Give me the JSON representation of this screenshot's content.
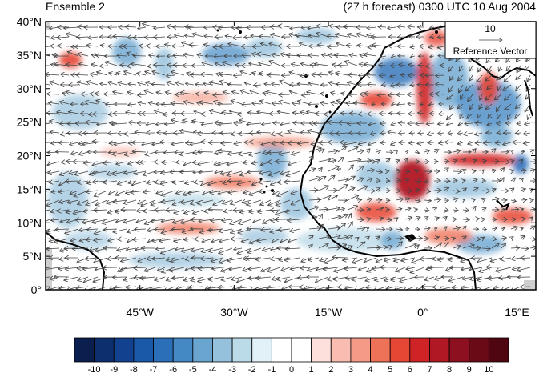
{
  "header": {
    "left_title": "Ensemble 2",
    "right_title": "(27 h forecast) 0300 UTC 10 Aug 2004"
  },
  "map": {
    "lon_range": [
      -60,
      18
    ],
    "lat_range": [
      0,
      40
    ],
    "y_ticks": [
      "40°N",
      "35°N",
      "30°N",
      "25°N",
      "20°N",
      "15°N",
      "10°N",
      "5°N",
      "0°"
    ],
    "x_ticks": [
      "45°W",
      "30°W",
      "15°W",
      "0°",
      "15°E"
    ],
    "reference_vector": {
      "value": "10",
      "label": "Reference Vector"
    }
  },
  "colorbar": {
    "labels": [
      "-10",
      "-9",
      "-8",
      "-7",
      "-6",
      "-5",
      "-4",
      "-3",
      "-2",
      "-1",
      "0",
      "1",
      "2",
      "3",
      "4",
      "5",
      "6",
      "7",
      "8",
      "9",
      "10"
    ],
    "colors": [
      "#0a1f4d",
      "#0d2f6e",
      "#12428f",
      "#1a58a8",
      "#2b6fb8",
      "#4489c4",
      "#6aa5cf",
      "#95c1dc",
      "#bcdbe9",
      "#e2f1f8",
      "#ffffff",
      "#ffffff",
      "#fde0dc",
      "#f9bcb0",
      "#f49a86",
      "#ee7258",
      "#e64634",
      "#cf2426",
      "#b01923",
      "#8d1020",
      "#6a0a17",
      "#500611"
    ]
  }
}
